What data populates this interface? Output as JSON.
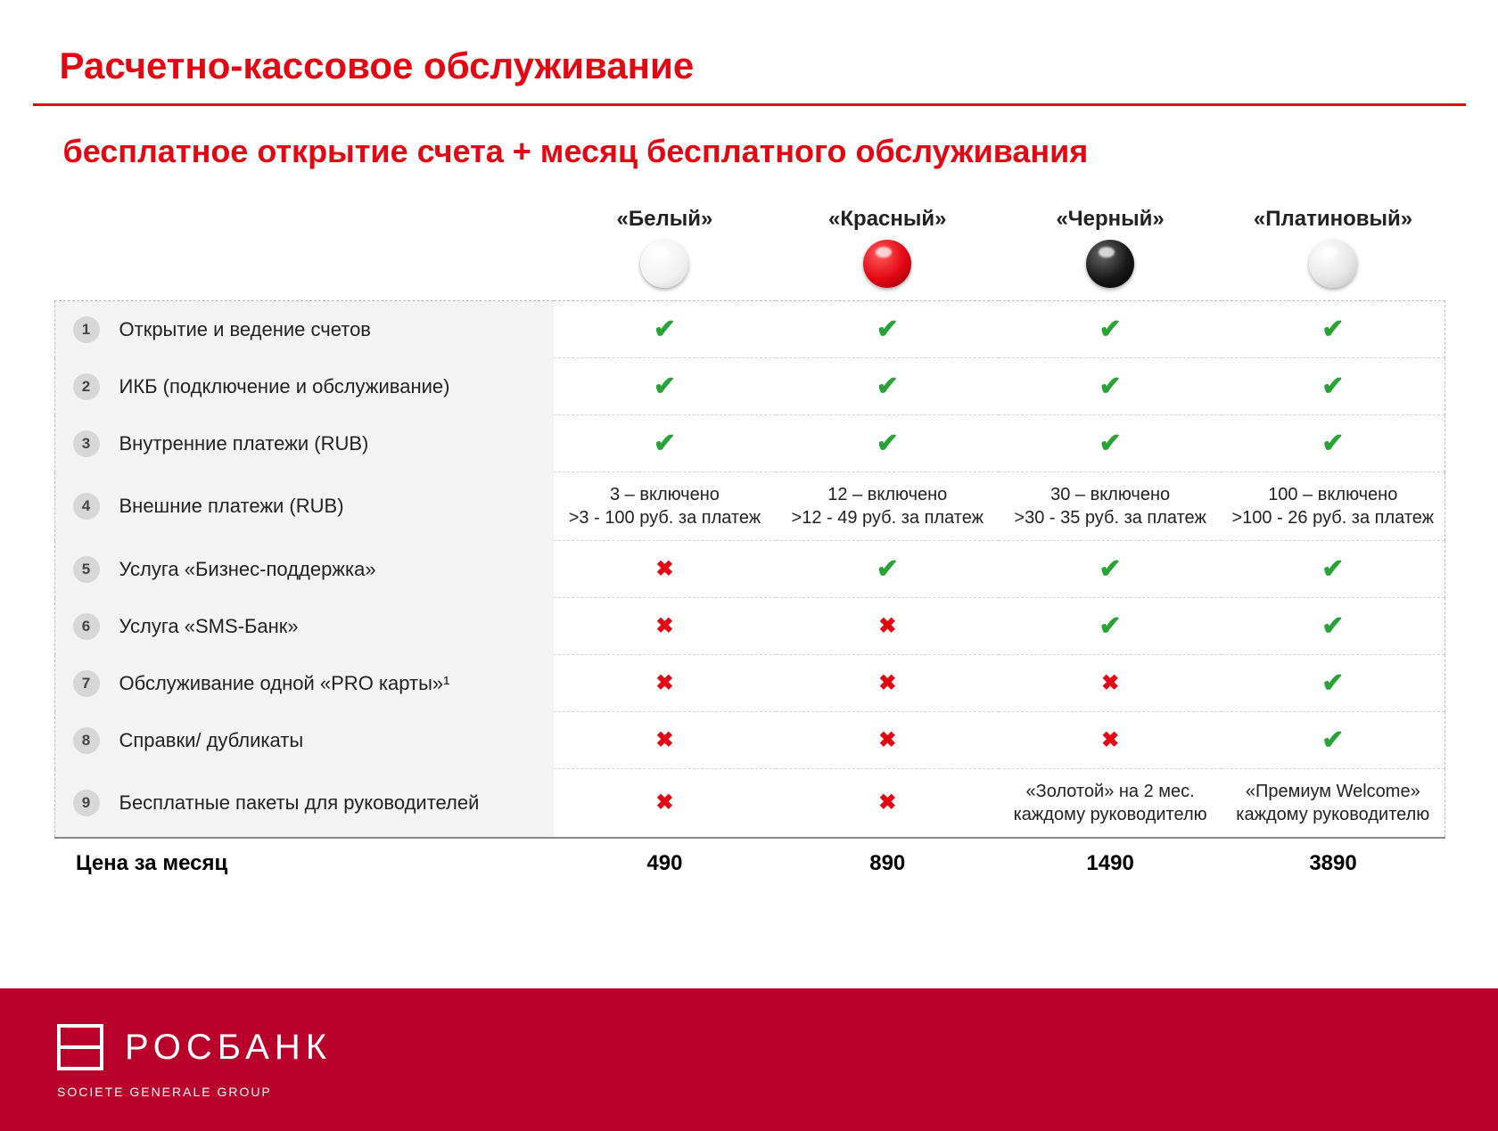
{
  "colors": {
    "brand_red": "#e30613",
    "footer_red": "#b8002a",
    "check_green": "#2aa336",
    "gray_bg": "#f4f4f4",
    "badge_bg": "#d7d7d7",
    "text": "#222222",
    "white": "#ffffff"
  },
  "title": "Расчетно-кассовое обслуживание",
  "subtitle": "бесплатное открытие счета + месяц бесплатного обслуживания",
  "plans": [
    {
      "name": "«Белый»",
      "sphere_color": "#ffffff",
      "sphere_gradient": "radial-gradient(circle at 35% 30%, #ffffff 0%, #f2f2f2 60%, #cfcfcf 100%)"
    },
    {
      "name": "«Красный»",
      "sphere_color": "#e30613",
      "sphere_gradient": "radial-gradient(circle at 35% 30%, #ff5a5a 0%, #e30613 55%, #8a000e 100%)"
    },
    {
      "name": "«Черный»",
      "sphere_color": "#111111",
      "sphere_gradient": "radial-gradient(circle at 35% 30%, #666666 0%, #181818 55%, #000000 100%)"
    },
    {
      "name": "«Платиновый»",
      "sphere_color": "#e6e6e6",
      "sphere_gradient": "radial-gradient(circle at 35% 30%, #ffffff 0%, #e8e8e8 55%, #bcbcbc 100%)"
    }
  ],
  "features": [
    {
      "n": "1",
      "label": "Открытие и ведение счетов",
      "cells": [
        {
          "t": "check"
        },
        {
          "t": "check"
        },
        {
          "t": "check"
        },
        {
          "t": "check"
        }
      ]
    },
    {
      "n": "2",
      "label": "ИКБ (подключение и обслуживание)",
      "cells": [
        {
          "t": "check"
        },
        {
          "t": "check"
        },
        {
          "t": "check"
        },
        {
          "t": "check"
        }
      ]
    },
    {
      "n": "3",
      "label": "Внутренние платежи (RUB)",
      "cells": [
        {
          "t": "check"
        },
        {
          "t": "check"
        },
        {
          "t": "check"
        },
        {
          "t": "check"
        }
      ]
    },
    {
      "n": "4",
      "label": "Внешние платежи (RUB)",
      "cells": [
        {
          "t": "text",
          "v": "3 – включено\n>3 - 100 руб. за платеж"
        },
        {
          "t": "text",
          "v": "12 – включено\n>12 - 49 руб. за платеж"
        },
        {
          "t": "text",
          "v": "30 – включено\n>30 - 35 руб. за платеж"
        },
        {
          "t": "text",
          "v": "100 – включено\n>100 - 26 руб. за платеж"
        }
      ]
    },
    {
      "n": "5",
      "label": "Услуга «Бизнес-поддержка»",
      "cells": [
        {
          "t": "cross"
        },
        {
          "t": "check"
        },
        {
          "t": "check"
        },
        {
          "t": "check"
        }
      ]
    },
    {
      "n": "6",
      "label": "Услуга «SMS-Банк»",
      "cells": [
        {
          "t": "cross"
        },
        {
          "t": "cross"
        },
        {
          "t": "check"
        },
        {
          "t": "check"
        }
      ]
    },
    {
      "n": "7",
      "label": "Обслуживание одной «PRO карты»¹",
      "cells": [
        {
          "t": "cross"
        },
        {
          "t": "cross"
        },
        {
          "t": "cross"
        },
        {
          "t": "check"
        }
      ]
    },
    {
      "n": "8",
      "label": "Справки/ дубликаты",
      "cells": [
        {
          "t": "cross"
        },
        {
          "t": "cross"
        },
        {
          "t": "cross"
        },
        {
          "t": "check"
        }
      ]
    },
    {
      "n": "9",
      "label": "Бесплатные пакеты для руководителей",
      "cells": [
        {
          "t": "cross"
        },
        {
          "t": "cross"
        },
        {
          "t": "text",
          "v": "«Золотой» на 2 мес. каждому руководителю"
        },
        {
          "t": "text",
          "v": "«Премиум Welcome» каждому руководителю"
        }
      ]
    }
  ],
  "price_label": "Цена за месяц",
  "prices": [
    "490",
    "890",
    "1490",
    "3890"
  ],
  "footer": {
    "brand": "РОСБАНК",
    "sub": "SOCIETE GENERALE GROUP"
  }
}
